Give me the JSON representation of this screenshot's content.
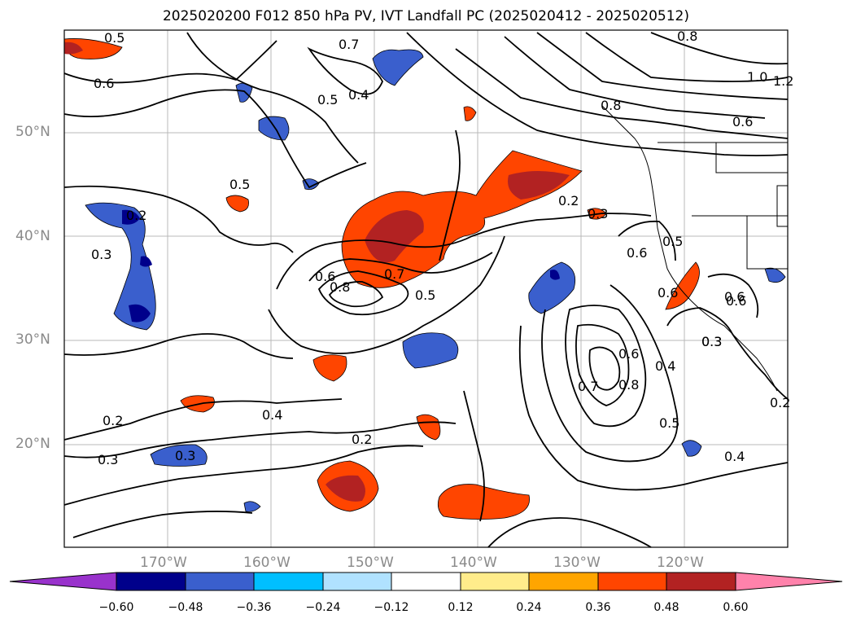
{
  "title": "2025020200 F012 850 hPa PV, IVT Landfall PC (2025020412 - 2025020512)",
  "axes": {
    "lat_ticks": [
      "50°N",
      "40°N",
      "30°N",
      "20°N"
    ],
    "lon_ticks": [
      "170°W",
      "160°W",
      "150°W",
      "140°W",
      "130°W",
      "120°W"
    ]
  },
  "contour_labels": [
    "0.5",
    "0.6",
    "0.5",
    "0.4",
    "0.7",
    "0.5",
    "0.3",
    "0.2",
    "0.6",
    "0.8",
    "0.7",
    "0.5",
    "0.2",
    "0.3",
    "0.6",
    "0.5",
    "0.6",
    "0.8",
    "1.0",
    "1.2",
    "0.6",
    "0.6",
    "0.8",
    "0.7",
    "0.6",
    "0.8",
    "0.4",
    "0.5",
    "0.3",
    "0.6",
    "0.4",
    "0.2",
    "0.4",
    "0.2",
    "0.3",
    "0.3",
    "0.3",
    "0.2"
  ],
  "colorbar": {
    "ticks": [
      "−0.60",
      "−0.48",
      "−0.36",
      "−0.24",
      "−0.12",
      "0.12",
      "0.24",
      "0.36",
      "0.48",
      "0.60"
    ],
    "colors": [
      "#9932cc",
      "#00008b",
      "#3a5fcd",
      "#00bfff",
      "#b0e2ff",
      "#ffffff",
      "#ffec8b",
      "#ffa500",
      "#ff4500",
      "#b22222",
      "#ff82ab"
    ]
  },
  "colors": {
    "blue_dark": "#00008b",
    "blue_mid": "#3a5fcd",
    "blue_light": "#00bfff",
    "orange": "#ff4500",
    "red_dark": "#b22222",
    "pink": "#ff82ab",
    "yellow": "#ffec8b"
  }
}
